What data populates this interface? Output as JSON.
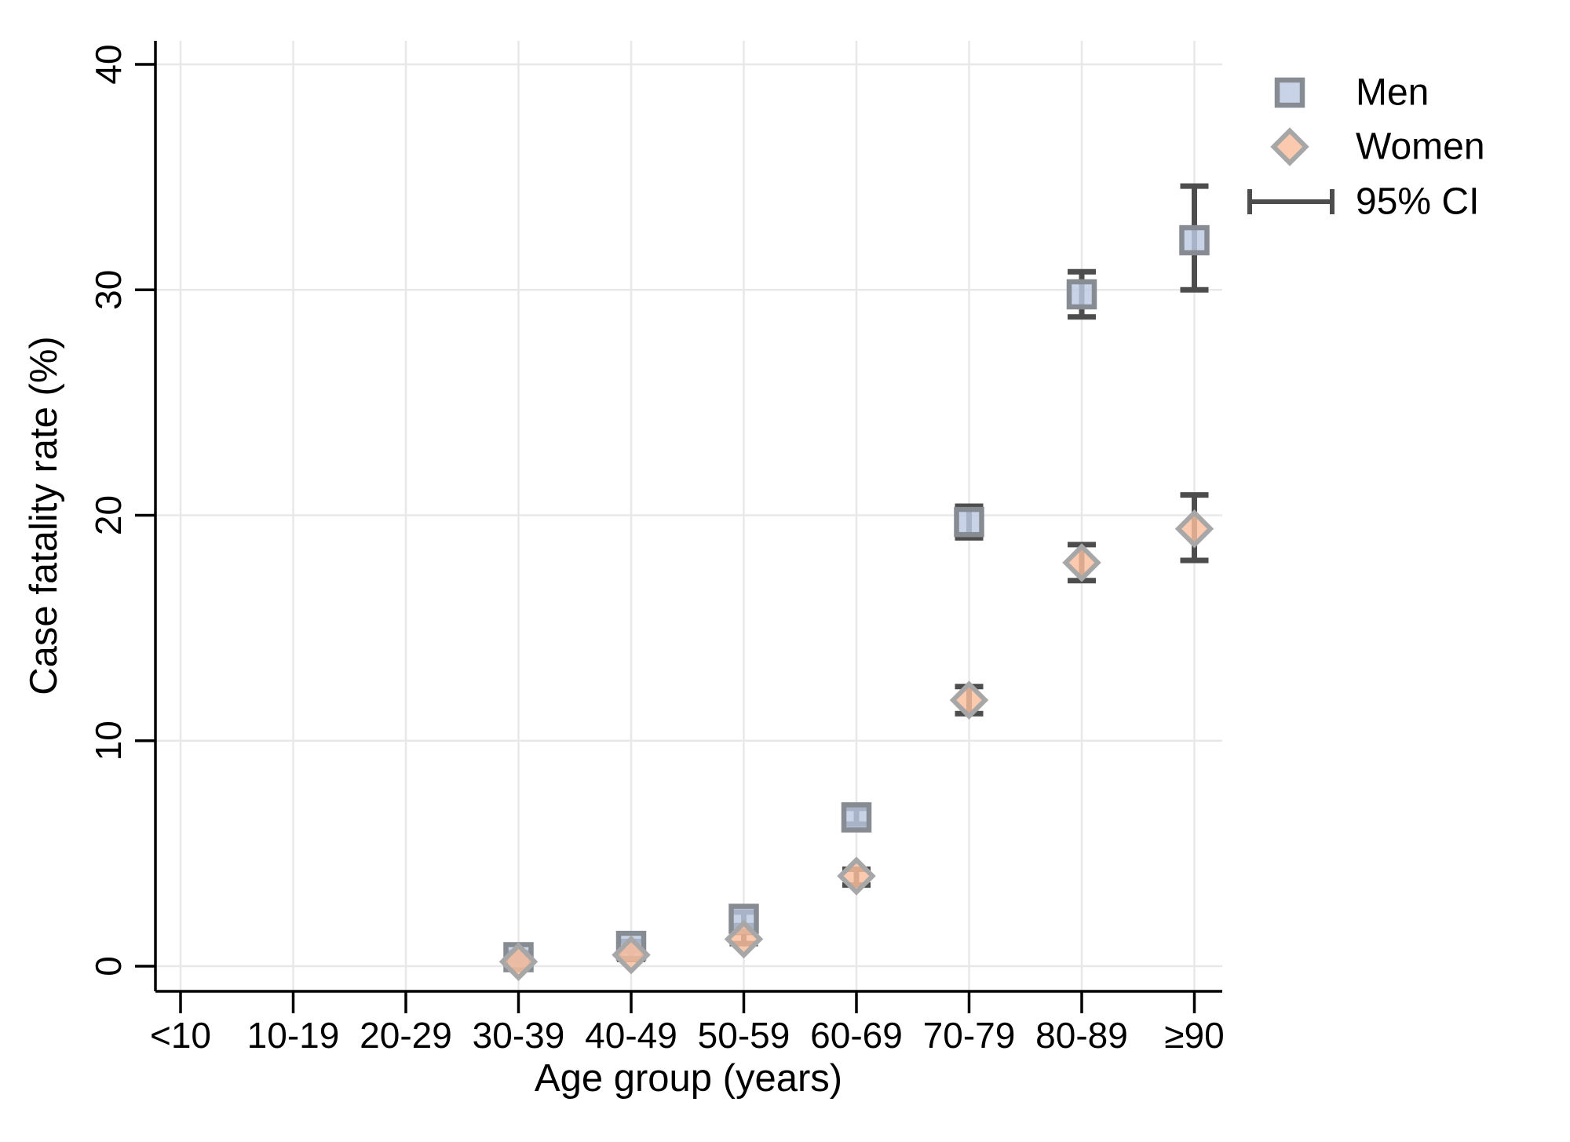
{
  "chart_data": {
    "type": "scatter",
    "title": "",
    "xlabel": "Age group (years)",
    "ylabel": "Case fatality rate (%)",
    "categories": [
      "<10",
      "10-19",
      "20-29",
      "30-39",
      "40-49",
      "50-59",
      "60-69",
      "70-79",
      "80-89",
      "≥90"
    ],
    "ylim": [
      0,
      40
    ],
    "yticks": [
      "0",
      "10",
      "20",
      "30",
      "40"
    ],
    "grid": true,
    "legend_position": "top-right",
    "legend": [
      {
        "label": "Men",
        "marker": "square"
      },
      {
        "label": "Women",
        "marker": "diamond"
      },
      {
        "label": "95% CI",
        "marker": "error-bar"
      }
    ],
    "series": [
      {
        "name": "Men",
        "marker": "square",
        "fill": "#bdc9e3",
        "stroke": "#878c93",
        "points": [
          {
            "category": "30-39",
            "value": 0.4,
            "ci_low": 0.2,
            "ci_high": 0.6
          },
          {
            "category": "40-49",
            "value": 0.9,
            "ci_low": 0.7,
            "ci_high": 1.1
          },
          {
            "category": "50-59",
            "value": 2.1,
            "ci_low": 1.8,
            "ci_high": 2.4
          },
          {
            "category": "60-69",
            "value": 6.6,
            "ci_low": 6.3,
            "ci_high": 7.0
          },
          {
            "category": "70-79",
            "value": 19.7,
            "ci_low": 19.0,
            "ci_high": 20.4
          },
          {
            "category": "80-89",
            "value": 29.8,
            "ci_low": 28.8,
            "ci_high": 30.8
          },
          {
            "category": "≥90",
            "value": 32.2,
            "ci_low": 30.0,
            "ci_high": 34.6
          }
        ]
      },
      {
        "name": "Women",
        "marker": "diamond",
        "fill": "#f9bd9c",
        "stroke": "#a7a7a7",
        "points": [
          {
            "category": "30-39",
            "value": 0.2,
            "ci_low": 0.1,
            "ci_high": 0.4
          },
          {
            "category": "40-49",
            "value": 0.5,
            "ci_low": 0.3,
            "ci_high": 0.7
          },
          {
            "category": "50-59",
            "value": 1.2,
            "ci_low": 1.0,
            "ci_high": 1.5
          },
          {
            "category": "60-69",
            "value": 4.0,
            "ci_low": 3.6,
            "ci_high": 4.3
          },
          {
            "category": "70-79",
            "value": 11.8,
            "ci_low": 11.2,
            "ci_high": 12.4
          },
          {
            "category": "80-89",
            "value": 17.9,
            "ci_low": 17.1,
            "ci_high": 18.7
          },
          {
            "category": "≥90",
            "value": 19.4,
            "ci_low": 18.0,
            "ci_high": 20.9
          }
        ]
      }
    ],
    "colors": {
      "error_bar": "#4d4d4d",
      "gridline": "#e8e8e8",
      "axis": "#000000",
      "background": "#ffffff"
    }
  }
}
